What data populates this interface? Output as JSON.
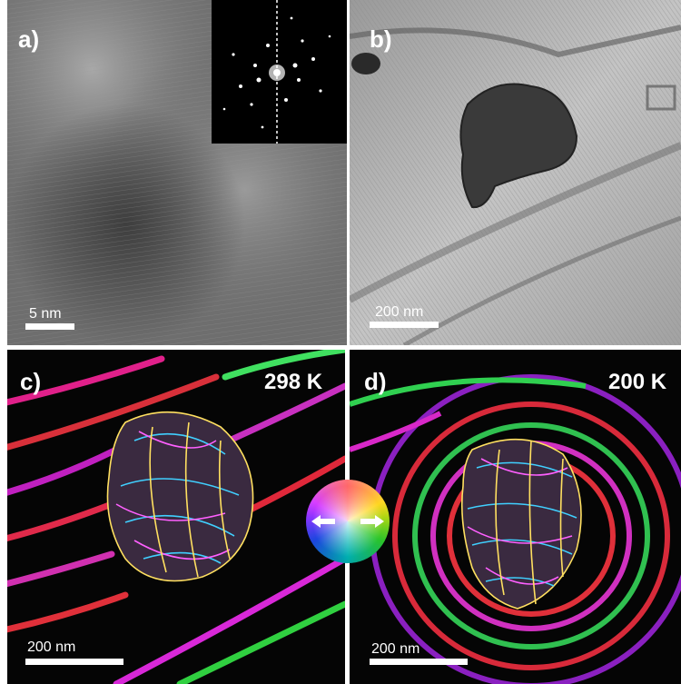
{
  "panels": {
    "a": {
      "label": "a)",
      "scalebar": "5 nm",
      "inset": "FFT diffraction pattern"
    },
    "b": {
      "label": "b)",
      "scalebar": "200 nm"
    },
    "c": {
      "label": "c)",
      "temperature": "298 K",
      "scalebar": "200 nm"
    },
    "d": {
      "label": "d)",
      "temperature": "200 K",
      "scalebar": "200 nm"
    }
  },
  "colors": {
    "label_text": "#ffffff",
    "phase_red": "#ff2a2a",
    "phase_green": "#30e030",
    "phase_blue": "#2050ff",
    "phase_magenta": "#d020ff",
    "phase_yellow": "#ffd000"
  },
  "icons": {
    "color_wheel": "hsv-color-wheel-icon",
    "arrows": "double-arrow-icon"
  }
}
